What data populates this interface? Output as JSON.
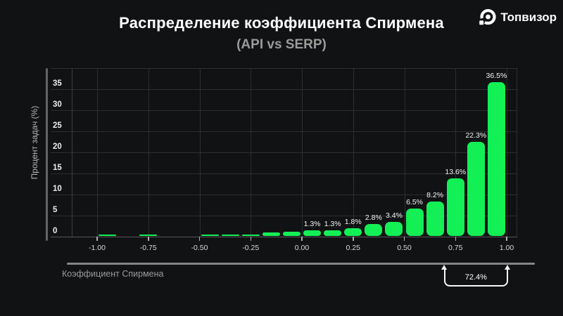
{
  "header": {
    "title": "Распределение коэффициента Спирмена",
    "subtitle": "(API vs SERP)"
  },
  "brand": {
    "name": "Топвизор"
  },
  "colors": {
    "background": "#111214",
    "bar": "#12F056",
    "grid": "#2d2e2f",
    "baseline": "#565656",
    "title": "#ffffff",
    "subtitle": "#9b9b9b"
  },
  "chart_data": {
    "type": "bar",
    "title": "Распределение коэффициента Спирмена (API vs SERP)",
    "xlabel": "Коэффициент Спирмена",
    "ylabel": "Процент задач (%)",
    "ylim": [
      0,
      40
    ],
    "xlim": [
      -1.12,
      1.05
    ],
    "grid": true,
    "legend": "none",
    "bin_width": 0.1,
    "x_ticks": [
      {
        "v": -1.0,
        "label": "-1.00"
      },
      {
        "v": -0.75,
        "label": "-0.75"
      },
      {
        "v": -0.5,
        "label": "-0.50"
      },
      {
        "v": -0.25,
        "label": "-0.25"
      },
      {
        "v": 0.0,
        "label": "0.00"
      },
      {
        "v": 0.25,
        "label": "0.25"
      },
      {
        "v": 0.5,
        "label": "0.50"
      },
      {
        "v": 0.75,
        "label": "0.75"
      },
      {
        "v": 1.0,
        "label": "1.00"
      }
    ],
    "y_ticks": [
      {
        "v": 0,
        "label": "0"
      },
      {
        "v": 5,
        "label": "5"
      },
      {
        "v": 10,
        "label": "10"
      },
      {
        "v": 15,
        "label": "15"
      },
      {
        "v": 20,
        "label": "20"
      },
      {
        "v": 25,
        "label": "25"
      },
      {
        "v": 30,
        "label": "30"
      },
      {
        "v": 35,
        "label": "35"
      }
    ],
    "bins": [
      {
        "start": -1.0,
        "end": -0.9,
        "value": 0.3,
        "label": ""
      },
      {
        "start": -0.9,
        "end": -0.8,
        "value": 0,
        "label": ""
      },
      {
        "start": -0.8,
        "end": -0.7,
        "value": 0.3,
        "label": ""
      },
      {
        "start": -0.7,
        "end": -0.6,
        "value": 0,
        "label": ""
      },
      {
        "start": -0.6,
        "end": -0.5,
        "value": 0,
        "label": ""
      },
      {
        "start": -0.5,
        "end": -0.4,
        "value": 0.3,
        "label": ""
      },
      {
        "start": -0.4,
        "end": -0.3,
        "value": 0.3,
        "label": ""
      },
      {
        "start": -0.3,
        "end": -0.2,
        "value": 0.3,
        "label": ""
      },
      {
        "start": -0.2,
        "end": -0.1,
        "value": 0.9,
        "label": ""
      },
      {
        "start": -0.1,
        "end": 0.0,
        "value": 1.0,
        "label": ""
      },
      {
        "start": 0.0,
        "end": 0.1,
        "value": 1.3,
        "label": "1.3%"
      },
      {
        "start": 0.1,
        "end": 0.2,
        "value": 1.3,
        "label": "1.3%"
      },
      {
        "start": 0.2,
        "end": 0.3,
        "value": 1.8,
        "label": "1.8%"
      },
      {
        "start": 0.3,
        "end": 0.4,
        "value": 2.8,
        "label": "2.8%"
      },
      {
        "start": 0.4,
        "end": 0.5,
        "value": 3.4,
        "label": "3.4%"
      },
      {
        "start": 0.5,
        "end": 0.6,
        "value": 6.5,
        "label": "6.5%"
      },
      {
        "start": 0.6,
        "end": 0.7,
        "value": 8.2,
        "label": "8.2%"
      },
      {
        "start": 0.7,
        "end": 0.8,
        "value": 13.6,
        "label": "13.6%"
      },
      {
        "start": 0.8,
        "end": 0.9,
        "value": 22.3,
        "label": "22.3%"
      },
      {
        "start": 0.9,
        "end": 1.0,
        "value": 36.5,
        "label": "36.5%"
      }
    ],
    "annotation": {
      "label": "72.4%",
      "x_from": 0.7,
      "x_to": 1.0
    }
  }
}
